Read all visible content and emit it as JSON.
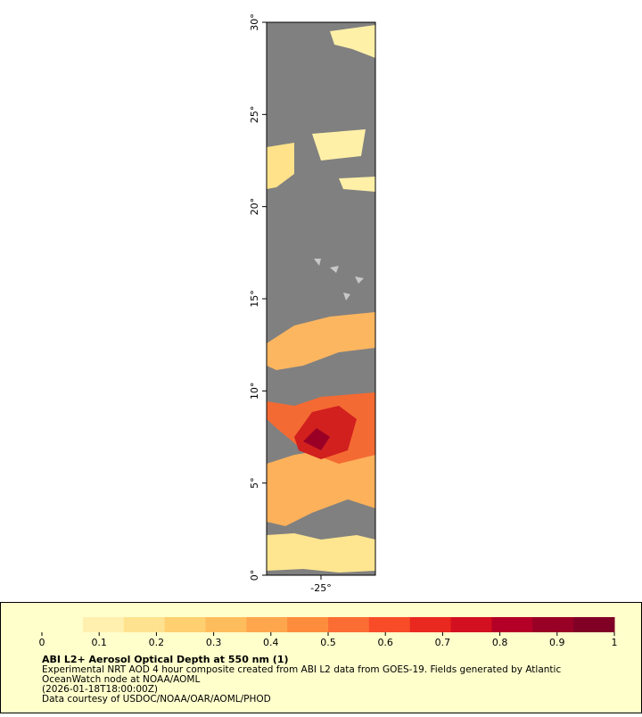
{
  "chart_data": {
    "type": "map",
    "xlim": [
      -28,
      -22
    ],
    "xticks": [
      {
        "value": -25,
        "label": "-25°"
      }
    ],
    "ylim": [
      0,
      30
    ],
    "yticks": [
      {
        "value": 0,
        "label": "0°"
      },
      {
        "value": 5,
        "label": "5°"
      },
      {
        "value": 10,
        "label": "10°"
      },
      {
        "value": 15,
        "label": "15°"
      },
      {
        "value": 20,
        "label": "20°"
      },
      {
        "value": 25,
        "label": "25°"
      },
      {
        "value": 30,
        "label": "30°"
      }
    ],
    "background_color": "#808080",
    "colorbar": {
      "lim": [
        0,
        1
      ],
      "ticks": [
        0,
        0.1,
        0.2,
        0.3,
        0.4,
        0.5,
        0.6,
        0.7,
        0.8,
        0.9,
        1
      ],
      "colors": [
        "#ffffcc",
        "#fff0b0",
        "#ffe290",
        "#fed070",
        "#febd5c",
        "#fea64c",
        "#fd8d3c",
        "#fc6d33",
        "#f84c29",
        "#e9281f",
        "#d3101f",
        "#b40026",
        "#990026",
        "#800026"
      ]
    },
    "title": "ABI L2+ Aerosol Optical Depth at 550 nm (1)",
    "notes": [
      "Experimental NRT AOD 4 hour composite created from ABI L2 data from GOES-19. Fields generated by Atlantic",
      "OceanWatch node at NOAA/AOML",
      "(2026-01-18T18:00:00Z)",
      "Data courtesy of USDOC/NOAA/OAR/AOML/PHOD"
    ]
  }
}
